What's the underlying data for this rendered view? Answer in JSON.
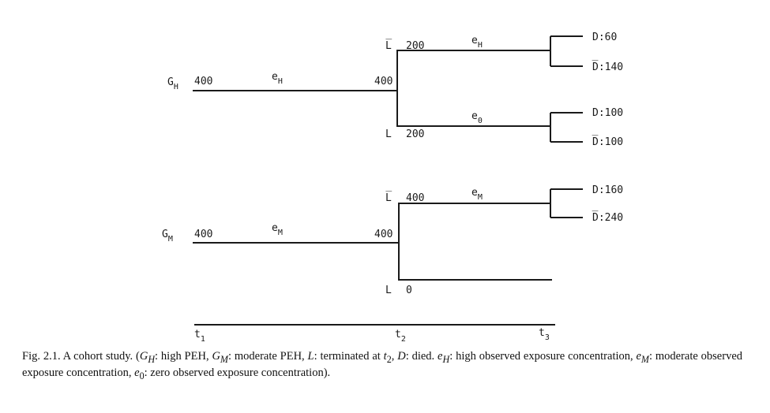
{
  "diagram": {
    "high": {
      "group": {
        "main": "G",
        "sub": "H"
      },
      "start_count": "400",
      "exposure": {
        "main": "e",
        "sub": "H"
      },
      "split_count": "400",
      "upper": {
        "label": "L̅",
        "count": "200",
        "exposure": {
          "main": "e",
          "sub": "H"
        },
        "outcomes": [
          "D:60",
          "D̅:140"
        ]
      },
      "lower": {
        "label": "L",
        "count": "200",
        "exposure": {
          "main": "e",
          "sub": "0"
        },
        "outcomes": [
          "D:100",
          "D̅:100"
        ]
      }
    },
    "moderate": {
      "group": {
        "main": "G",
        "sub": "M"
      },
      "start_count": "400",
      "exposure": {
        "main": "e",
        "sub": "M"
      },
      "split_count": "400",
      "upper": {
        "label": "L̅",
        "count": "400",
        "exposure": {
          "main": "e",
          "sub": "M"
        },
        "outcomes": [
          "D:160",
          "D̅:240"
        ]
      },
      "lower": {
        "label": "L",
        "count": "0"
      }
    },
    "timeline": {
      "t1": "1",
      "t2": "2",
      "t3": "3",
      "t_main": "t"
    }
  },
  "caption": "Fig. 2.1. A cohort study. (G_H: high PEH, G_M: moderate PEH, L: terminated at t_2, D: died. e_H: high observed exposure concentration, e_M: moderate observed exposure concentration, e_0: zero observed exposure concentration).",
  "caption_parts": {
    "fig": "Fig. 2.1. A cohort study. (",
    "gh": "G",
    "gh_sub": "H",
    "a": ": high PEH, ",
    "gm": "G",
    "gm_sub": "M",
    "b": ": moderate PEH, ",
    "l": "L",
    "c": ": terminated at ",
    "t": "t",
    "t_sub": "2",
    "d_sep": ", ",
    "d": "D",
    "e": ": died. ",
    "eh": "e",
    "eh_sub": "H",
    "f": ": high observed exposure concentration, ",
    "em": "e",
    "em_sub": "M",
    "g": ": moderate observed exposure concentration, ",
    "e0": "e",
    "e0_sub": "0",
    "h": ": zero observed exposure concentration)."
  }
}
